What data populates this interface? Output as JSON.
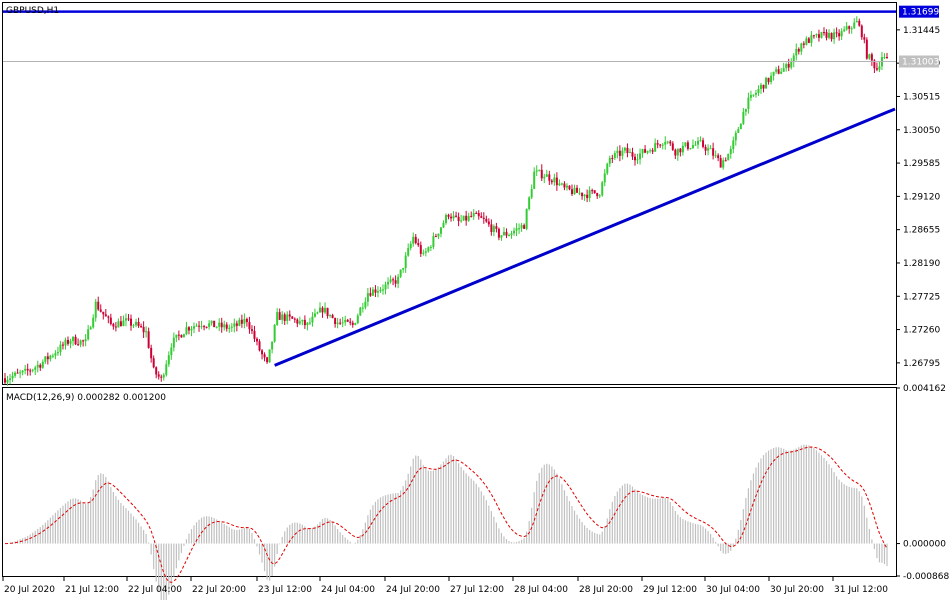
{
  "chart_data": [
    {
      "type": "candlestick",
      "title": "GBPUSD,H1",
      "y_ticks": [
        "1.31445",
        "1.30980",
        "1.30515",
        "1.30050",
        "1.29585",
        "1.29120",
        "1.28655",
        "1.28190",
        "1.27725",
        "1.27260",
        "1.26795"
      ],
      "ylim": [
        1.265,
        1.3182
      ],
      "price_labels": {
        "resistance": "1.31699",
        "current": "1.31003"
      },
      "resistance_level": 1.31699,
      "current_price": 1.31003,
      "trendline": {
        "from": [
          "23 Jul 12:00",
          1.2676
        ],
        "to": [
          "31 Jul 18:00",
          1.3034
        ]
      },
      "ohlc_knots": [
        [
          0,
          1.2658
        ],
        [
          8,
          1.2666
        ],
        [
          14,
          1.2678
        ],
        [
          20,
          1.2695
        ],
        [
          26,
          1.2712
        ],
        [
          32,
          1.2708
        ],
        [
          36,
          1.2762
        ],
        [
          42,
          1.2733
        ],
        [
          48,
          1.2737
        ],
        [
          52,
          1.2732
        ],
        [
          56,
          1.2722
        ],
        [
          59,
          1.2668
        ],
        [
          62,
          1.2656
        ],
        [
          66,
          1.2706
        ],
        [
          72,
          1.2728
        ],
        [
          78,
          1.2735
        ],
        [
          84,
          1.2731
        ],
        [
          90,
          1.2728
        ],
        [
          96,
          1.274
        ],
        [
          100,
          1.2705
        ],
        [
          104,
          1.2676
        ],
        [
          108,
          1.2745
        ],
        [
          114,
          1.274
        ],
        [
          120,
          1.2732
        ],
        [
          126,
          1.2755
        ],
        [
          132,
          1.2736
        ],
        [
          138,
          1.2732
        ],
        [
          144,
          1.2778
        ],
        [
          150,
          1.2785
        ],
        [
          156,
          1.2796
        ],
        [
          162,
          1.2855
        ],
        [
          166,
          1.2828
        ],
        [
          170,
          1.2852
        ],
        [
          176,
          1.2888
        ],
        [
          180,
          1.2876
        ],
        [
          186,
          1.2885
        ],
        [
          190,
          1.2878
        ],
        [
          196,
          1.2858
        ],
        [
          200,
          1.286
        ],
        [
          206,
          1.2872
        ],
        [
          210,
          1.2945
        ],
        [
          214,
          1.2942
        ],
        [
          218,
          1.2935
        ],
        [
          222,
          1.2922
        ],
        [
          226,
          1.2918
        ],
        [
          230,
          1.2915
        ],
        [
          236,
          1.2918
        ],
        [
          240,
          1.2965
        ],
        [
          246,
          1.2975
        ],
        [
          250,
          1.2968
        ],
        [
          256,
          1.2978
        ],
        [
          262,
          1.2992
        ],
        [
          266,
          1.2975
        ],
        [
          270,
          1.2982
        ],
        [
          276,
          1.2985
        ],
        [
          280,
          1.2975
        ],
        [
          284,
          1.2958
        ],
        [
          288,
          1.2975
        ],
        [
          294,
          1.304
        ],
        [
          300,
          1.3065
        ],
        [
          306,
          1.3085
        ],
        [
          310,
          1.3092
        ],
        [
          316,
          1.3125
        ],
        [
          320,
          1.3132
        ],
        [
          326,
          1.3138
        ],
        [
          330,
          1.3135
        ],
        [
          334,
          1.3145
        ],
        [
          338,
          1.3155
        ],
        [
          340,
          1.314
        ],
        [
          342,
          1.311
        ],
        [
          346,
          1.309
        ],
        [
          348,
          1.3108
        ],
        [
          350,
          1.31
        ]
      ]
    },
    {
      "type": "macd",
      "title": "MACD(12,26,9) 0.000282 0.001200",
      "params": [
        12,
        26,
        9
      ],
      "macd_last": 0.000282,
      "signal_last": 0.0012,
      "y_ticks": [
        "0.004162",
        "0.000000",
        "-0.000868"
      ],
      "ylim": [
        -0.000868,
        0.004162
      ]
    }
  ],
  "x_ticks": [
    "20 Jul 2020",
    "21 Jul 12:00",
    "22 Jul 04:00",
    "22 Jul 20:00",
    "23 Jul 12:00",
    "24 Jul 04:00",
    "24 Jul 20:00",
    "27 Jul 12:00",
    "28 Jul 04:00",
    "28 Jul 20:00",
    "29 Jul 12:00",
    "30 Jul 04:00",
    "30 Jul 20:00",
    "31 Jul 12:00"
  ],
  "colors": {
    "bull": "#33cc33",
    "bear": "#cc0033",
    "resistance_line": "#0000dd",
    "trend_line": "#0000cc",
    "histogram": "#c0c0c0",
    "signal": "#e00000",
    "current_line": "#b4b4b4",
    "current_label_bg": "#c0c0c0",
    "resistance_label_bg": "#0000dd"
  }
}
